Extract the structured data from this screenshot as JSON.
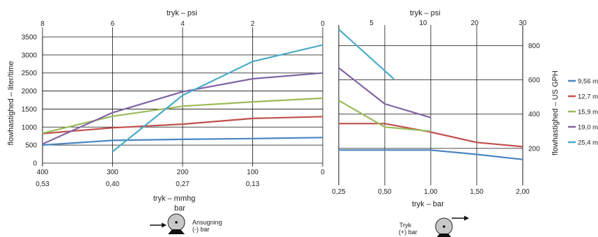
{
  "chart_data": [
    {
      "type": "line",
      "xlabel": "tryk – mmhg",
      "xlabel2": "bar",
      "top_label": "tryk – psi",
      "ylabel": "flowhastighed – liter/time",
      "x_ticks": [
        "400",
        "300",
        "200",
        "100",
        "0"
      ],
      "x_ticks_bar": [
        "0,53",
        "0,40",
        "0,27",
        "0,13",
        ""
      ],
      "top_ticks": [
        "8",
        "6",
        "4",
        "2",
        "0"
      ],
      "y_ticks": [
        "0",
        "500",
        "1000",
        "1500",
        "2000",
        "2500",
        "3000",
        "3500"
      ],
      "xlim": [
        400,
        0
      ],
      "ylim": [
        0,
        3500
      ],
      "grid": true,
      "series": [
        {
          "name": "9,56 mm",
          "color": "#4a86c0",
          "x": [
            400,
            300,
            200,
            100,
            0
          ],
          "y": [
            500,
            630,
            660,
            680,
            710
          ]
        },
        {
          "name": "12,7 mm",
          "color": "#c0504d",
          "x": [
            400,
            300,
            200,
            100,
            0
          ],
          "y": [
            820,
            980,
            1080,
            1240,
            1290
          ]
        },
        {
          "name": "15,9 mm",
          "color": "#9bbb59",
          "x": [
            400,
            300,
            200,
            100,
            0
          ],
          "y": [
            830,
            1300,
            1580,
            1700,
            1800
          ]
        },
        {
          "name": "19,0 mm",
          "color": "#8064a2",
          "x": [
            400,
            300,
            200,
            100,
            0
          ],
          "y": [
            530,
            1400,
            1980,
            2340,
            2500
          ]
        },
        {
          "name": "25,4 mm",
          "color": "#4bacc6",
          "x": [
            300,
            200,
            100,
            0
          ],
          "y": [
            320,
            1880,
            2820,
            3280
          ]
        }
      ],
      "pictogram_label": [
        "Ansugning",
        "(-) bar"
      ]
    },
    {
      "type": "line",
      "xlabel": "tryk – bar",
      "top_label": "tryk – psi",
      "ylabel": "flowhastighed – US GPH",
      "x_ticks": [
        "0,25",
        "0,50",
        "1,00",
        "1,50",
        "2,00"
      ],
      "top_ticks": [
        "5",
        "10",
        "20",
        "30"
      ],
      "y_ticks": [
        "200",
        "400",
        "600",
        "800"
      ],
      "ylim": [
        0,
        920
      ],
      "grid": true,
      "series": [
        {
          "name": "9,56 mm",
          "color": "#4a86c0",
          "x": [
            0.25,
            0.5,
            1.0,
            1.5,
            2.0
          ],
          "y": [
            190,
            190,
            190,
            165,
            135
          ]
        },
        {
          "name": "12,7 mm",
          "color": "#c0504d",
          "x": [
            0.25,
            0.5,
            1.0,
            1.5,
            2.0
          ],
          "y": [
            345,
            345,
            295,
            235,
            210
          ]
        },
        {
          "name": "15,9 mm",
          "color": "#9bbb59",
          "x": [
            0.25,
            0.5,
            1.0
          ],
          "y": [
            480,
            325,
            300
          ]
        },
        {
          "name": "19,0 mm",
          "color": "#8064a2",
          "x": [
            0.25,
            0.5,
            1.0
          ],
          "y": [
            670,
            460,
            380
          ]
        },
        {
          "name": "25,4 mm",
          "color": "#4bacc6",
          "x": [
            0.25,
            0.6
          ],
          "y": [
            895,
            605
          ]
        }
      ],
      "pictogram_label": [
        "Tryk",
        "(+) bar"
      ]
    }
  ],
  "legend": {
    "position": "right",
    "items": [
      {
        "label": "9,56 mm",
        "color": "#4a86c0"
      },
      {
        "label": "12,7 mm",
        "color": "#c0504d"
      },
      {
        "label": "15,9 mm",
        "color": "#9bbb59"
      },
      {
        "label": "19,0 mm",
        "color": "#8064a2"
      },
      {
        "label": "25,4 mm",
        "color": "#4bacc6"
      }
    ]
  }
}
